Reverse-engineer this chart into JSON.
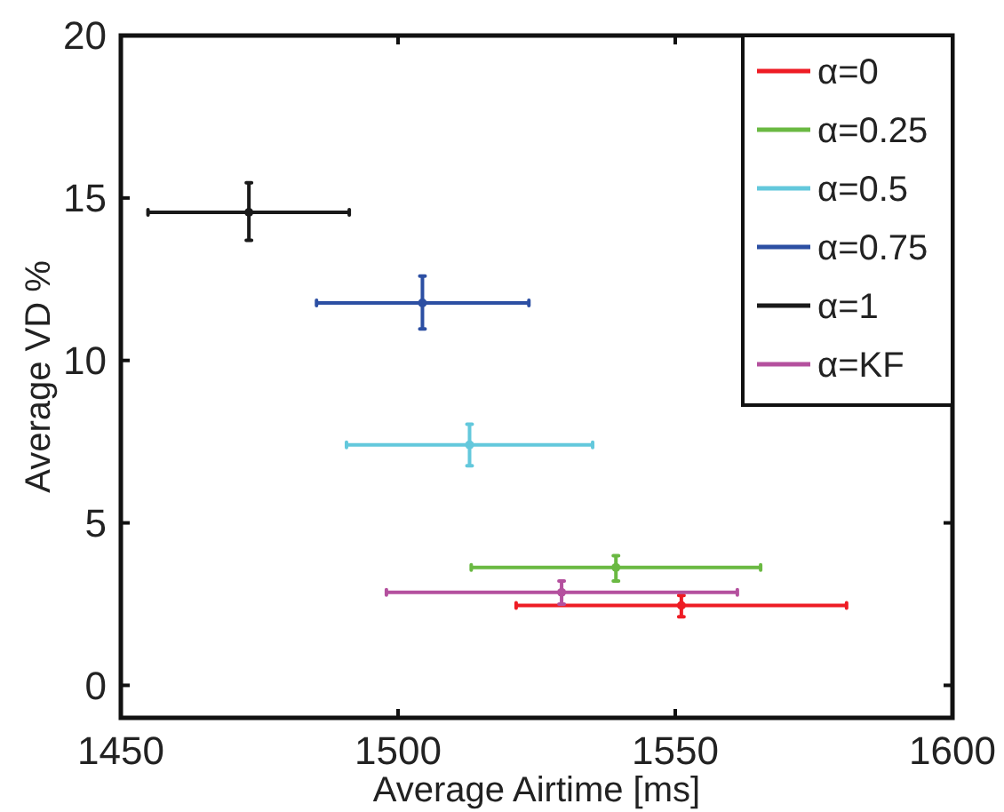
{
  "chart_data": {
    "type": "scatter",
    "xlabel": "Average Airtime [ms]",
    "ylabel": "Average VD %",
    "xlim": [
      1450,
      1600
    ],
    "ylim": [
      -1,
      20
    ],
    "xticks": [
      1450,
      1500,
      1550,
      1600
    ],
    "yticks": [
      0,
      5,
      10,
      15,
      20
    ],
    "grid": false,
    "legend": "top right",
    "marker": "circle",
    "series": [
      {
        "name": "α=0",
        "color": "#ee1c24",
        "x": [
          1551.1
        ],
        "values": [
          2.46
        ],
        "xerrors": [
          [
            1521.3,
            1580.9
          ]
        ],
        "errors": [
          [
            2.11,
            2.77
          ]
        ]
      },
      {
        "name": "α=0.25",
        "color": "#6ab942",
        "x": [
          1539.3
        ],
        "values": [
          3.63
        ],
        "xerrors": [
          [
            1513.2,
            1565.4
          ]
        ],
        "errors": [
          [
            3.21,
            3.99
          ]
        ]
      },
      {
        "name": "α=0.5",
        "color": "#63c8dc",
        "x": [
          1512.9
        ],
        "values": [
          7.4
        ],
        "xerrors": [
          [
            1490.7,
            1535.1
          ]
        ],
        "errors": [
          [
            6.76,
            8.04
          ]
        ]
      },
      {
        "name": "α=0.75",
        "color": "#2c4fa3",
        "x": [
          1504.4
        ],
        "values": [
          11.77
        ],
        "xerrors": [
          [
            1485.3,
            1523.6
          ]
        ],
        "errors": [
          [
            10.97,
            12.6
          ]
        ]
      },
      {
        "name": "α=1",
        "color": "#1a1a1a",
        "x": [
          1473.1
        ],
        "values": [
          14.56
        ],
        "xerrors": [
          [
            1454.9,
            1491.2
          ]
        ],
        "errors": [
          [
            13.7,
            15.47
          ]
        ]
      },
      {
        "name": "α=KF",
        "color": "#b4509e",
        "x": [
          1529.5
        ],
        "values": [
          2.86
        ],
        "xerrors": [
          [
            1497.9,
            1561.2
          ]
        ],
        "errors": [
          [
            2.5,
            3.21
          ]
        ]
      }
    ]
  }
}
